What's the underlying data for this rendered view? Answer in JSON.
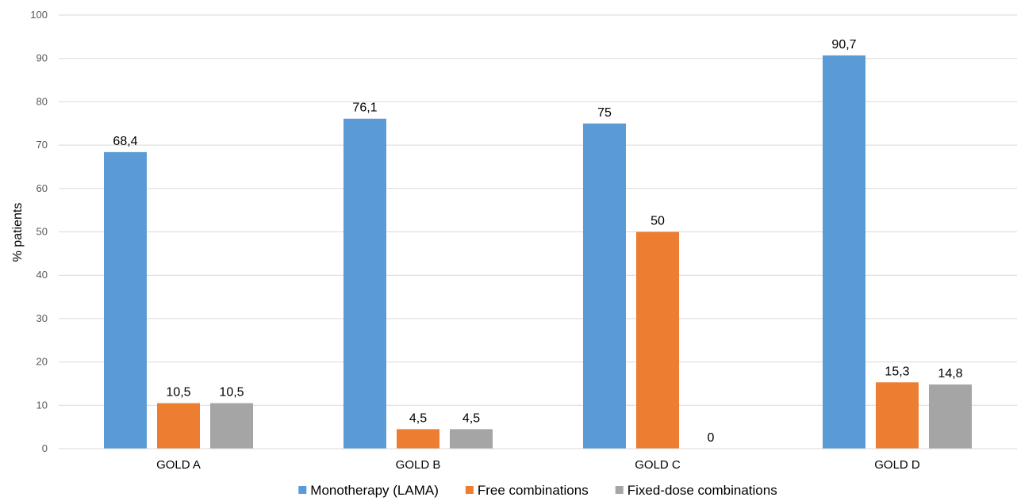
{
  "chart_data": {
    "type": "bar",
    "title": "",
    "xlabel": "",
    "ylabel": "% patients",
    "ylim": [
      0,
      100
    ],
    "yticks": [
      0,
      10,
      20,
      30,
      40,
      50,
      60,
      70,
      80,
      90,
      100
    ],
    "categories": [
      "GOLD A",
      "GOLD B",
      "GOLD C",
      "GOLD D"
    ],
    "series": [
      {
        "name": "Monotherapy (LAMA)",
        "color": "#5B9BD5",
        "values": [
          68.4,
          76.1,
          75,
          90.7
        ],
        "labels": [
          "68,4",
          "76,1",
          "75",
          "90,7"
        ]
      },
      {
        "name": "Free combinations",
        "color": "#ED7D31",
        "values": [
          10.5,
          4.5,
          50,
          15.3
        ],
        "labels": [
          "10,5",
          "4,5",
          "50",
          "15,3"
        ]
      },
      {
        "name": "Fixed-dose combinations",
        "color": "#A5A5A5",
        "values": [
          10.5,
          4.5,
          0,
          14.8
        ],
        "labels": [
          "10,5",
          "4,5",
          "0",
          "14,8"
        ]
      }
    ],
    "grid": true,
    "legend_position": "bottom"
  }
}
